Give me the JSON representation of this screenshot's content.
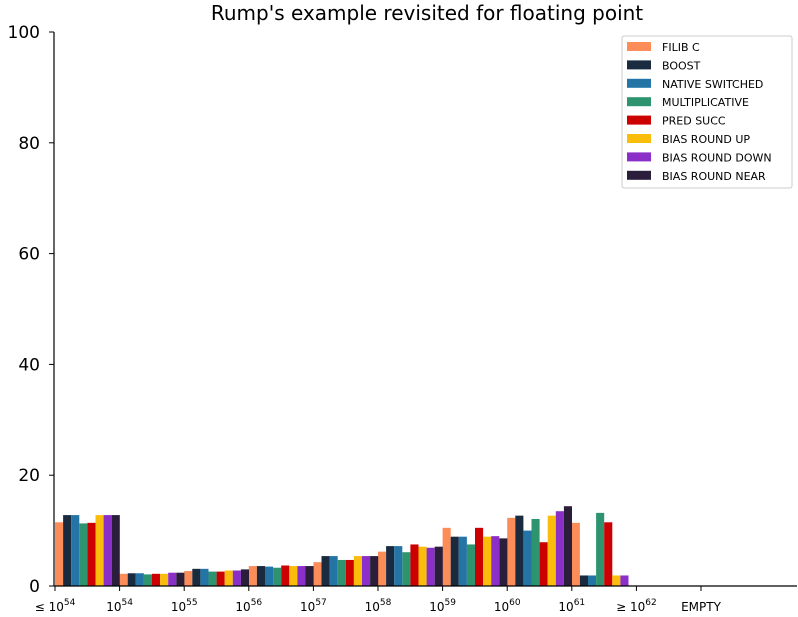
{
  "chart_data": {
    "type": "bar",
    "title": "Rump's example revisited for floating point",
    "ylim": [
      0,
      100
    ],
    "yticks": [
      "0",
      "20",
      "40",
      "60",
      "80",
      "100"
    ],
    "categories": [
      {
        "base": "≤ 10",
        "exp": "54"
      },
      {
        "base": "10",
        "exp": "54"
      },
      {
        "base": "10",
        "exp": "55"
      },
      {
        "base": "10",
        "exp": "56"
      },
      {
        "base": "10",
        "exp": "57"
      },
      {
        "base": "10",
        "exp": "58"
      },
      {
        "base": "10",
        "exp": "59"
      },
      {
        "base": "10",
        "exp": "60"
      },
      {
        "base": "10",
        "exp": "61"
      },
      {
        "base": "≥ 10",
        "exp": "62"
      },
      {
        "base": "EMPTY",
        "exp": ""
      }
    ],
    "legend_position": "top-right",
    "series": [
      {
        "name": "FILIB C",
        "color": "#fc8d59",
        "values": [
          11.5,
          2.2,
          2.7,
          3.6,
          4.3,
          6.2,
          10.5,
          12.3,
          11.4,
          0,
          0
        ]
      },
      {
        "name": "BOOST",
        "color": "#1a2b40",
        "values": [
          12.8,
          2.3,
          3.1,
          3.6,
          5.4,
          7.2,
          8.9,
          12.7,
          1.9,
          0,
          0
        ]
      },
      {
        "name": "NATIVE SWITCHED",
        "color": "#2474a6",
        "values": [
          12.8,
          2.3,
          3.1,
          3.5,
          5.4,
          7.2,
          8.9,
          10.0,
          1.9,
          0,
          0
        ]
      },
      {
        "name": "MULTIPLICATIVE",
        "color": "#2e9470",
        "values": [
          11.3,
          2.1,
          2.6,
          3.3,
          4.7,
          6.1,
          7.5,
          12.1,
          13.2,
          0,
          0
        ]
      },
      {
        "name": "PRED SUCC",
        "color": "#cc0000",
        "values": [
          11.4,
          2.2,
          2.6,
          3.7,
          4.7,
          7.5,
          10.5,
          7.9,
          11.5,
          0,
          0
        ]
      },
      {
        "name": "BIAS ROUND UP",
        "color": "#fbbd0b",
        "values": [
          12.8,
          2.2,
          2.8,
          3.6,
          5.4,
          7.1,
          8.9,
          12.7,
          1.9,
          0,
          0
        ]
      },
      {
        "name": "BIAS ROUND DOWN",
        "color": "#8b2fc9",
        "values": [
          12.8,
          2.4,
          2.8,
          3.6,
          5.4,
          6.9,
          9.0,
          13.5,
          1.9,
          0,
          0
        ]
      },
      {
        "name": "BIAS ROUND NEAR",
        "color": "#2b1e3b",
        "values": [
          12.8,
          2.4,
          3.0,
          3.6,
          5.4,
          7.1,
          8.6,
          14.4,
          0.0,
          0,
          0
        ]
      }
    ]
  }
}
